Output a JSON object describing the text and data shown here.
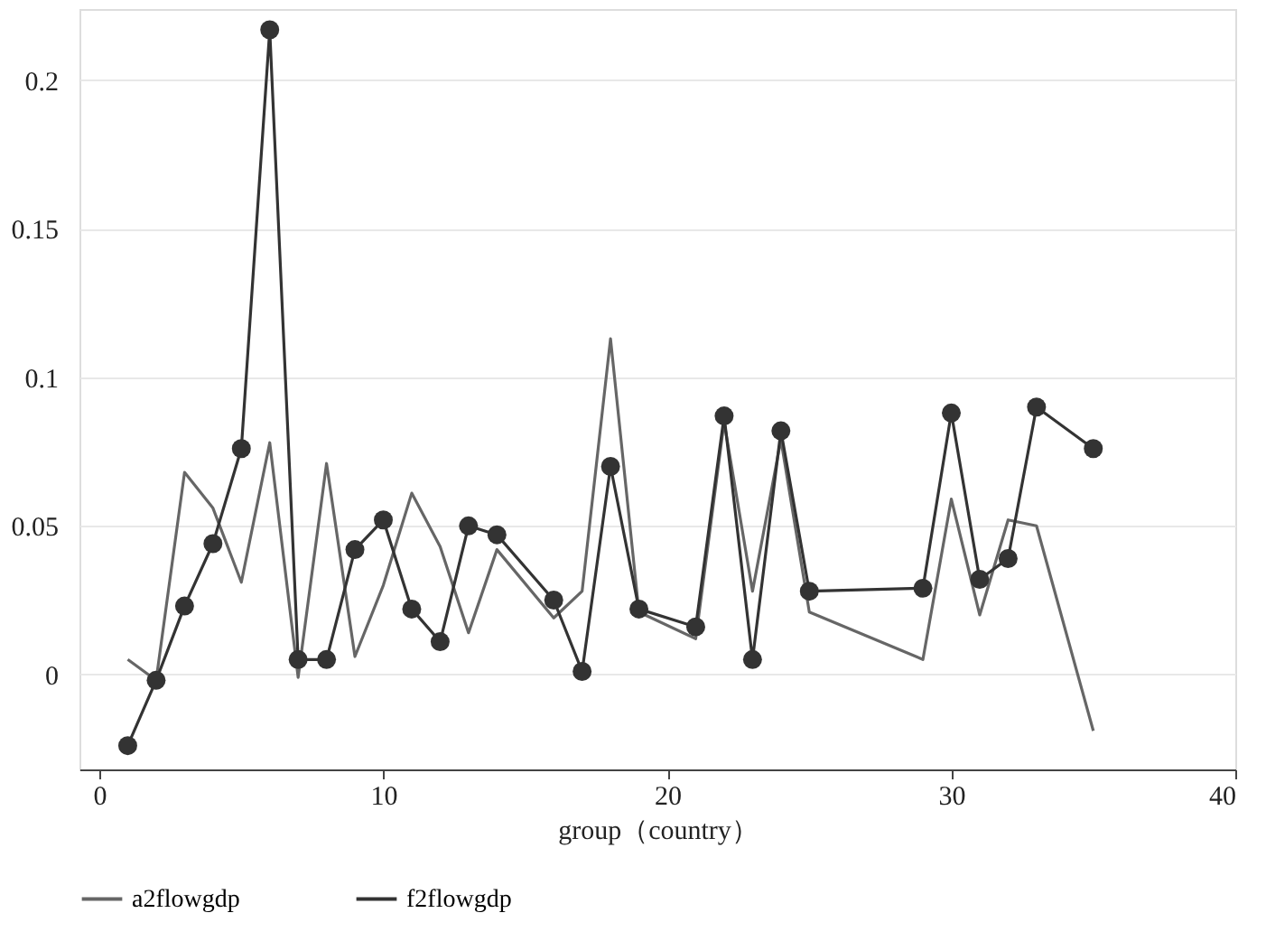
{
  "chart_data": {
    "type": "line",
    "xlabel": "group（country）",
    "x": [
      1,
      2,
      3,
      4,
      5,
      6,
      7,
      8,
      9,
      10,
      11,
      12,
      13,
      14,
      16,
      17,
      18,
      19,
      21,
      22,
      23,
      24,
      25,
      29,
      30,
      31,
      32,
      33,
      35
    ],
    "series": [
      {
        "name": "a2flowgdp",
        "color": "#666666",
        "marker": "none",
        "values": [
          0.005,
          -0.002,
          0.068,
          0.056,
          0.031,
          0.078,
          -0.001,
          0.071,
          0.006,
          0.03,
          0.061,
          0.043,
          0.014,
          0.042,
          0.019,
          0.028,
          0.113,
          0.021,
          0.012,
          0.085,
          0.028,
          0.079,
          0.021,
          0.005,
          0.059,
          0.02,
          0.052,
          0.05,
          -0.019
        ]
      },
      {
        "name": "f2flowgdp",
        "color": "#333333",
        "marker": "circle",
        "values": [
          -0.024,
          -0.002,
          0.023,
          0.044,
          0.076,
          0.217,
          0.005,
          0.005,
          0.042,
          0.052,
          0.022,
          0.011,
          0.05,
          0.047,
          0.025,
          0.001,
          0.07,
          0.022,
          0.016,
          0.087,
          0.005,
          0.082,
          0.028,
          0.029,
          0.088,
          0.032,
          0.039,
          0.09,
          0.076
        ]
      }
    ],
    "xlim": [
      -0.7,
      40
    ],
    "xticks": [
      0,
      10,
      20,
      30,
      40
    ],
    "ylim": [
      -0.032,
      0.224
    ],
    "yticks": [
      0,
      0.05,
      0.1,
      0.15,
      0.2
    ],
    "grid": "y",
    "legend": "bottom",
    "line_style": "solid"
  }
}
